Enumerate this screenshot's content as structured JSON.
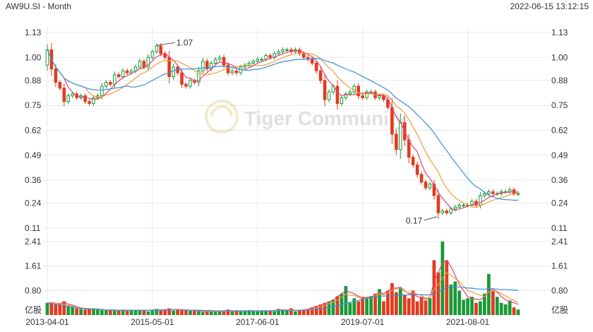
{
  "header": {
    "symbol_label": "AW9U.SI - Month",
    "timestamp": "2022-06-15 13:12:15"
  },
  "watermark": {
    "text": "Tiger Community"
  },
  "colors": {
    "up": "#1a9a3a",
    "down": "#e23b1e",
    "ma_pink": "#e0447a",
    "ma_orange": "#f39c34",
    "ma_blue": "#3a8fd9",
    "grid": "#e8e8e8",
    "axis_text": "#333333"
  },
  "chart_data": {
    "type": "candlestick",
    "title": "AW9U.SI - Month",
    "x_tick_labels": [
      "2013-04-01",
      "2015-05-01",
      "2017-06-01",
      "2019-07-01",
      "2021-08-01"
    ],
    "x_tick_month_index": [
      0,
      25,
      50,
      75,
      100
    ],
    "price_axis": {
      "ticks": [
        "1.13",
        "1.00",
        "0.88",
        "0.75",
        "0.62",
        "0.49",
        "0.36",
        "0.24",
        "0.11"
      ],
      "range": [
        0.11,
        1.13
      ]
    },
    "volume_axis": {
      "ticks": [
        "2.41",
        "1.61",
        "0.80"
      ],
      "unit_label": "亿股",
      "range": [
        0,
        2.41
      ]
    },
    "annotations": [
      {
        "label": "1.07",
        "month_index": 26,
        "value": 1.07
      },
      {
        "label": "0.17",
        "month_index": 93,
        "value": 0.17
      }
    ],
    "closes": [
      1.04,
      0.94,
      0.87,
      0.84,
      0.77,
      0.8,
      0.81,
      0.79,
      0.8,
      0.77,
      0.76,
      0.79,
      0.8,
      0.85,
      0.87,
      0.86,
      0.91,
      0.9,
      0.93,
      0.92,
      0.93,
      0.95,
      0.98,
      0.95,
      1.0,
      1.03,
      1.06,
      1.02,
      1.0,
      0.9,
      0.95,
      0.92,
      0.86,
      0.85,
      0.88,
      0.87,
      0.93,
      0.98,
      0.94,
      0.97,
      0.99,
      1.0,
      0.96,
      0.92,
      0.93,
      0.92,
      0.95,
      0.96,
      0.97,
      0.98,
      0.99,
      0.99,
      1.01,
      1.0,
      1.02,
      1.03,
      1.04,
      1.04,
      1.03,
      1.04,
      1.02,
      1.0,
      0.99,
      0.97,
      0.93,
      0.88,
      0.78,
      0.82,
      0.85,
      0.76,
      0.79,
      0.81,
      0.82,
      0.85,
      0.8,
      0.79,
      0.82,
      0.82,
      0.79,
      0.8,
      0.78,
      0.74,
      0.6,
      0.52,
      0.66,
      0.57,
      0.48,
      0.44,
      0.39,
      0.35,
      0.32,
      0.34,
      0.28,
      0.19,
      0.2,
      0.19,
      0.21,
      0.22,
      0.23,
      0.23,
      0.23,
      0.25,
      0.23,
      0.28,
      0.29,
      0.3,
      0.29,
      0.29,
      0.3,
      0.3,
      0.31,
      0.29,
      0.29
    ],
    "volumes": [
      0.4,
      0.42,
      0.36,
      0.38,
      0.45,
      0.3,
      0.28,
      0.22,
      0.2,
      0.18,
      0.2,
      0.22,
      0.18,
      0.16,
      0.15,
      0.17,
      0.16,
      0.14,
      0.18,
      0.16,
      0.15,
      0.17,
      0.14,
      0.16,
      0.12,
      0.18,
      0.2,
      0.15,
      0.18,
      0.22,
      0.14,
      0.2,
      0.18,
      0.16,
      0.14,
      0.15,
      0.12,
      0.1,
      0.14,
      0.12,
      0.11,
      0.13,
      0.15,
      0.18,
      0.12,
      0.14,
      0.12,
      0.13,
      0.16,
      0.14,
      0.12,
      0.15,
      0.13,
      0.14,
      0.12,
      0.2,
      0.18,
      0.16,
      0.22,
      0.12,
      0.14,
      0.18,
      0.2,
      0.25,
      0.3,
      0.35,
      0.4,
      0.45,
      0.5,
      0.62,
      0.7,
      0.95,
      0.4,
      0.55,
      0.45,
      0.6,
      0.55,
      0.62,
      0.7,
      0.85,
      0.45,
      0.8,
      1.05,
      0.75,
      0.9,
      0.65,
      0.55,
      0.8,
      0.45,
      0.6,
      0.48,
      0.55,
      1.8,
      1.4,
      2.41,
      1.8,
      1.0,
      1.1,
      0.8,
      0.5,
      0.55,
      0.6,
      0.4,
      0.45,
      0.7,
      1.35,
      0.8,
      0.6,
      0.4,
      0.35,
      0.48,
      0.25,
      0.18
    ],
    "volume_ma_blue": [
      0.38,
      0.37,
      0.35,
      0.33,
      0.31,
      0.28,
      0.26,
      0.24,
      0.22,
      0.21,
      0.2,
      0.19,
      0.18,
      0.18,
      0.17,
      0.17,
      0.17,
      0.16,
      0.16,
      0.16,
      0.16,
      0.16,
      0.16,
      0.16,
      0.16,
      0.16,
      0.16,
      0.16,
      0.16,
      0.17,
      0.17,
      0.17,
      0.17,
      0.17,
      0.16,
      0.16,
      0.16,
      0.15,
      0.15,
      0.15,
      0.14,
      0.14,
      0.14,
      0.14,
      0.14,
      0.14,
      0.14,
      0.14,
      0.14,
      0.14,
      0.14,
      0.14,
      0.14,
      0.14,
      0.14,
      0.15,
      0.15,
      0.15,
      0.15,
      0.15,
      0.16,
      0.16,
      0.17,
      0.18,
      0.19,
      0.21,
      0.23,
      0.25,
      0.28,
      0.31,
      0.35,
      0.39,
      0.42,
      0.45,
      0.48,
      0.52,
      0.55,
      0.58,
      0.61,
      0.62,
      0.62,
      0.63,
      0.64,
      0.65,
      0.66,
      0.66,
      0.66,
      0.67,
      0.67,
      0.67,
      0.66,
      0.66,
      0.7,
      0.76,
      0.84,
      0.9,
      0.93,
      0.93,
      0.92,
      0.9,
      0.89,
      0.88,
      0.86,
      0.85,
      0.85,
      0.86,
      0.86,
      0.85,
      0.84,
      0.84,
      0.83,
      0.82,
      0.81
    ],
    "volume_ma_orange": [
      0.4,
      0.39,
      0.38,
      0.37,
      0.35,
      0.32,
      0.3,
      0.27,
      0.24,
      0.22,
      0.21,
      0.2,
      0.19,
      0.18,
      0.17,
      0.17,
      0.16,
      0.16,
      0.16,
      0.16,
      0.16,
      0.16,
      0.16,
      0.16,
      0.15,
      0.16,
      0.16,
      0.16,
      0.17,
      0.18,
      0.17,
      0.18,
      0.18,
      0.17,
      0.16,
      0.16,
      0.15,
      0.14,
      0.13,
      0.13,
      0.12,
      0.12,
      0.13,
      0.14,
      0.14,
      0.14,
      0.13,
      0.13,
      0.14,
      0.14,
      0.13,
      0.14,
      0.14,
      0.14,
      0.14,
      0.16,
      0.16,
      0.16,
      0.17,
      0.16,
      0.16,
      0.17,
      0.18,
      0.2,
      0.23,
      0.27,
      0.32,
      0.37,
      0.42,
      0.5,
      0.58,
      0.68,
      0.65,
      0.64,
      0.58,
      0.56,
      0.54,
      0.58,
      0.62,
      0.7,
      0.66,
      0.72,
      0.81,
      0.86,
      0.9,
      0.78,
      0.72,
      0.75,
      0.68,
      0.65,
      0.55,
      0.58,
      0.85,
      1.0,
      1.2,
      1.4,
      1.3,
      1.2,
      1.1,
      0.95,
      0.8,
      0.75,
      0.7,
      0.65,
      0.6,
      0.75,
      0.8,
      0.78,
      0.7,
      0.62,
      0.55,
      0.48,
      0.4
    ],
    "volume_ma_pink": [
      0.4,
      0.41,
      0.39,
      0.38,
      0.4,
      0.36,
      0.33,
      0.28,
      0.24,
      0.2,
      0.2,
      0.21,
      0.2,
      0.18,
      0.17,
      0.16,
      0.16,
      0.16,
      0.16,
      0.16,
      0.16,
      0.16,
      0.15,
      0.15,
      0.15,
      0.16,
      0.17,
      0.17,
      0.18,
      0.19,
      0.18,
      0.18,
      0.17,
      0.17,
      0.16,
      0.15,
      0.13,
      0.12,
      0.12,
      0.12,
      0.12,
      0.13,
      0.14,
      0.15,
      0.14,
      0.14,
      0.13,
      0.13,
      0.14,
      0.14,
      0.13,
      0.14,
      0.13,
      0.14,
      0.15,
      0.17,
      0.17,
      0.17,
      0.18,
      0.16,
      0.15,
      0.17,
      0.2,
      0.24,
      0.28,
      0.33,
      0.38,
      0.43,
      0.5,
      0.6,
      0.7,
      0.8,
      0.75,
      0.7,
      0.62,
      0.55,
      0.58,
      0.6,
      0.65,
      0.75,
      0.7,
      0.78,
      0.9,
      0.88,
      0.92,
      0.8,
      0.7,
      0.7,
      0.6,
      0.58,
      0.52,
      0.55,
      1.1,
      1.4,
      1.7,
      1.8,
      1.6,
      1.3,
      1.0,
      0.8,
      0.6,
      0.55,
      0.52,
      0.5,
      0.6,
      0.8,
      0.85,
      0.75,
      0.6,
      0.5,
      0.45,
      0.4,
      0.35
    ]
  }
}
